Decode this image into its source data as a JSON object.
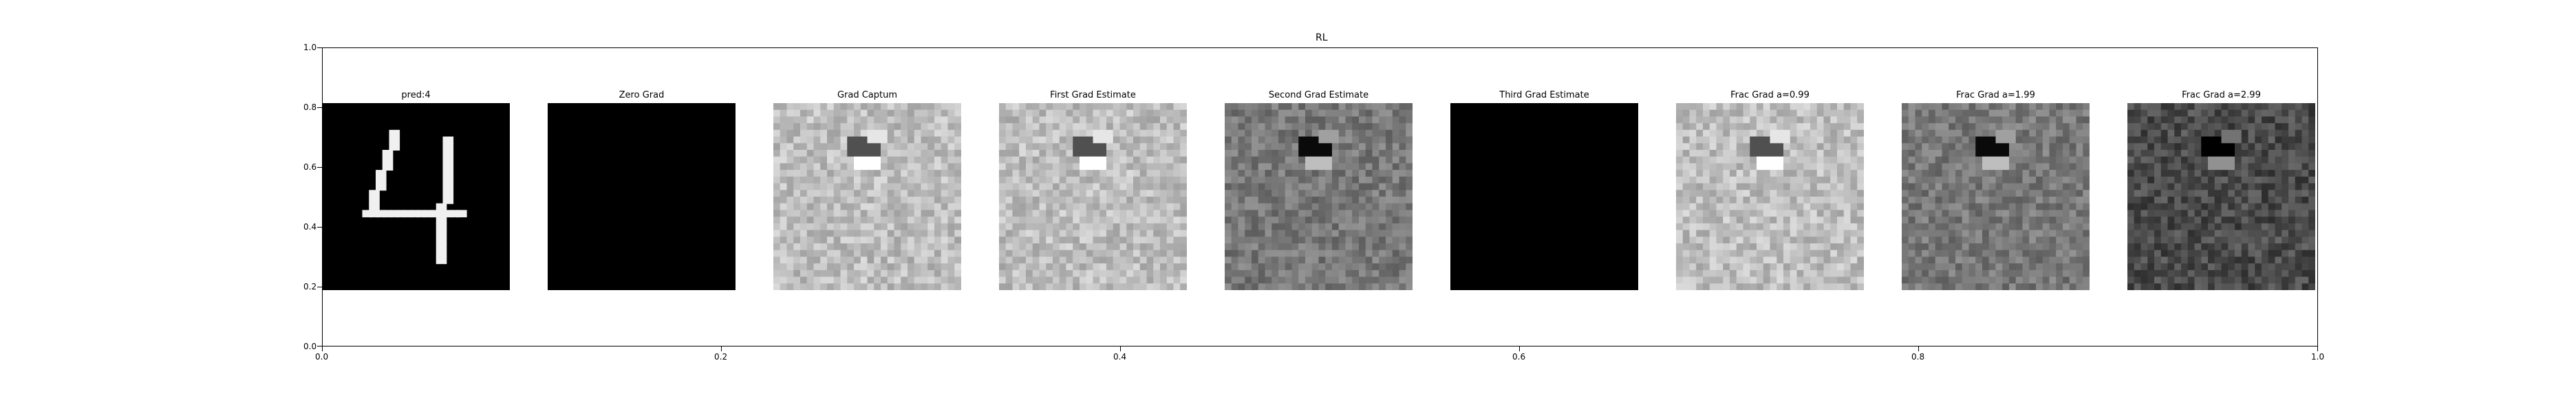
{
  "figure": {
    "title": "RL",
    "y_ticks": [
      "1.0",
      "0.8",
      "0.6",
      "0.4",
      "0.2",
      "0.0"
    ],
    "x_ticks": [
      "0.0",
      "0.2",
      "0.4",
      "0.6",
      "0.8",
      "1.0"
    ]
  },
  "panels": [
    {
      "title": "pred:4",
      "kind": "digit"
    },
    {
      "title": "Zero Grad",
      "kind": "black"
    },
    {
      "title": "Grad Captum",
      "kind": "light"
    },
    {
      "title": "First Grad Estimate",
      "kind": "light"
    },
    {
      "title": "Second Grad Estimate",
      "kind": "mid"
    },
    {
      "title": "Third Grad Estimate",
      "kind": "black"
    },
    {
      "title": "Frac Grad a=0.99",
      "kind": "light"
    },
    {
      "title": "Frac Grad a=1.99",
      "kind": "mid"
    },
    {
      "title": "Frac Grad a=2.99",
      "kind": "dark"
    }
  ]
}
